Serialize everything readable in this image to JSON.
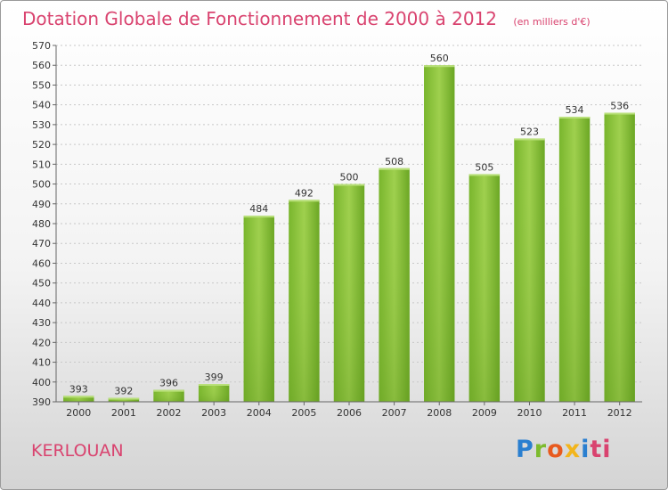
{
  "chart_data": {
    "type": "bar",
    "title": "Dotation Globale de Fonctionnement de 2000 à 2012",
    "unit_label": "(en milliers d'€)",
    "categories": [
      "2000",
      "2001",
      "2002",
      "2003",
      "2004",
      "2005",
      "2006",
      "2007",
      "2008",
      "2009",
      "2010",
      "2011",
      "2012"
    ],
    "values": [
      393,
      392,
      396,
      399,
      484,
      492,
      500,
      508,
      560,
      505,
      523,
      534,
      536
    ],
    "ylim": [
      390,
      570
    ],
    "ytick_step": 10,
    "grid": true,
    "bar_color": "#8cc63f"
  },
  "footer": {
    "commune": "KERLOUAN",
    "logo": "Proxiti"
  }
}
